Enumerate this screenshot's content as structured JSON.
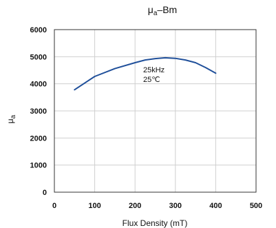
{
  "chart_data": {
    "type": "line",
    "title": {
      "prefix": "μ",
      "subscript": "a",
      "suffix": "–Bm"
    },
    "xlabel": "Flux Density (mT)",
    "ylabel": {
      "main": "μ",
      "subscript": "a"
    },
    "xlim": [
      0,
      500
    ],
    "ylim": [
      0,
      6000
    ],
    "xticks": [
      0,
      100,
      200,
      300,
      400,
      500
    ],
    "yticks": [
      0,
      1000,
      2000,
      3000,
      4000,
      5000,
      6000
    ],
    "xtick_labels": [
      "0",
      "100",
      "200",
      "300",
      "400",
      "500"
    ],
    "ytick_labels": [
      "0",
      "1000",
      "2000",
      "3000",
      "4000",
      "5000",
      "6000"
    ],
    "grid": true,
    "annotations": [
      "25kHz",
      "25℃"
    ],
    "series": [
      {
        "color": "#1f4f9a",
        "x": [
          50,
          100,
          150,
          200,
          225,
          250,
          275,
          300,
          325,
          350,
          375,
          400
        ],
        "y": [
          3780,
          4270,
          4560,
          4780,
          4880,
          4930,
          4960,
          4940,
          4880,
          4780,
          4600,
          4390
        ]
      }
    ]
  }
}
